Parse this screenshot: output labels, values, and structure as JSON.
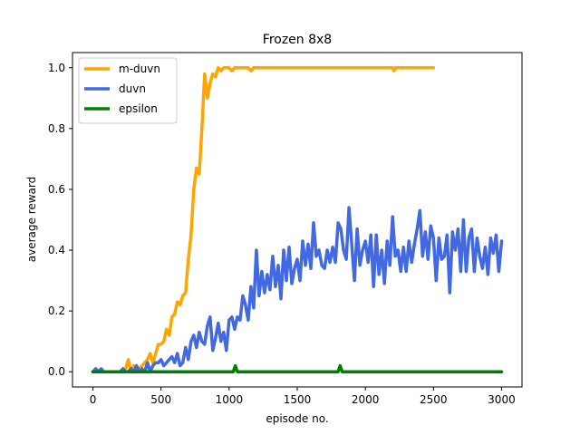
{
  "chart_data": {
    "type": "line",
    "title": "Frozen 8x8",
    "xlabel": "episode no.",
    "ylabel": "average reward",
    "xlim": [
      -150,
      3150
    ],
    "ylim": [
      -0.05,
      1.05
    ],
    "xticks": [
      0,
      500,
      1000,
      1500,
      2000,
      2500,
      3000
    ],
    "yticks": [
      0.0,
      0.2,
      0.4,
      0.6,
      0.8,
      1.0
    ],
    "xtick_labels": [
      "0",
      "500",
      "1000",
      "1500",
      "2000",
      "2500",
      "3000"
    ],
    "ytick_labels": [
      "0.0",
      "0.2",
      "0.4",
      "0.6",
      "0.8",
      "1.0"
    ],
    "grid": false,
    "legend_position": "top-left",
    "series": [
      {
        "name": "m-duvn",
        "color": "#ffa500",
        "x": [
          0,
          20,
          40,
          60,
          80,
          100,
          120,
          140,
          160,
          180,
          200,
          220,
          240,
          260,
          280,
          300,
          320,
          340,
          360,
          380,
          400,
          420,
          440,
          460,
          480,
          500,
          520,
          540,
          560,
          580,
          600,
          620,
          640,
          660,
          680,
          700,
          720,
          740,
          760,
          780,
          800,
          820,
          840,
          860,
          880,
          900,
          920,
          940,
          960,
          980,
          1000,
          1020,
          1040,
          1060,
          1080,
          1100,
          1120,
          1140,
          1160,
          1180,
          1200,
          1250,
          1300,
          1350,
          1400,
          1500,
          1600,
          1700,
          1800,
          1900,
          2000,
          2100,
          2200,
          2210,
          2220,
          2300,
          2400,
          2450,
          2500
        ],
        "y": [
          0,
          0,
          0,
          0,
          0,
          0,
          0,
          0,
          0,
          0,
          0,
          0,
          0.01,
          0.04,
          0,
          0.02,
          0,
          0.01,
          0.02,
          0.03,
          0.04,
          0.06,
          0.03,
          0.06,
          0.09,
          0.09,
          0.1,
          0.14,
          0.12,
          0.18,
          0.19,
          0.23,
          0.22,
          0.25,
          0.26,
          0.37,
          0.45,
          0.6,
          0.67,
          0.65,
          0.8,
          0.98,
          0.9,
          0.95,
          0.98,
          0.97,
          1.0,
          0.99,
          1.0,
          1.0,
          1.0,
          0.99,
          1.0,
          1.0,
          1.0,
          1.0,
          1.0,
          1.0,
          0.99,
          1.0,
          1.0,
          1.0,
          1.0,
          1.0,
          1.0,
          1.0,
          1.0,
          1.0,
          1.0,
          1.0,
          1.0,
          1.0,
          1.0,
          0.99,
          1.0,
          1.0,
          1.0,
          1.0,
          1.0
        ]
      },
      {
        "name": "duvn",
        "color": "#4169e1",
        "x": [
          0,
          20,
          40,
          60,
          80,
          100,
          120,
          140,
          160,
          180,
          200,
          220,
          240,
          260,
          280,
          300,
          320,
          340,
          360,
          380,
          400,
          420,
          440,
          460,
          480,
          500,
          520,
          540,
          560,
          580,
          600,
          620,
          640,
          660,
          680,
          700,
          720,
          740,
          760,
          780,
          800,
          820,
          840,
          860,
          880,
          900,
          920,
          940,
          960,
          980,
          1000,
          1020,
          1040,
          1060,
          1080,
          1100,
          1120,
          1140,
          1160,
          1180,
          1200,
          1220,
          1240,
          1260,
          1280,
          1300,
          1320,
          1340,
          1360,
          1380,
          1400,
          1420,
          1440,
          1460,
          1480,
          1500,
          1520,
          1540,
          1560,
          1580,
          1600,
          1620,
          1640,
          1660,
          1680,
          1700,
          1720,
          1740,
          1760,
          1780,
          1800,
          1820,
          1840,
          1860,
          1880,
          1900,
          1920,
          1940,
          1960,
          1980,
          2000,
          2020,
          2040,
          2060,
          2080,
          2100,
          2120,
          2140,
          2160,
          2180,
          2200,
          2220,
          2240,
          2260,
          2280,
          2300,
          2320,
          2340,
          2360,
          2380,
          2400,
          2420,
          2440,
          2460,
          2480,
          2500,
          2520,
          2540,
          2560,
          2580,
          2600,
          2620,
          2640,
          2660,
          2680,
          2700,
          2720,
          2740,
          2760,
          2780,
          2800,
          2820,
          2840,
          2860,
          2880,
          2900,
          2920,
          2940,
          2960,
          2980,
          3000
        ],
        "y": [
          0,
          0.01,
          0,
          0.01,
          0,
          0,
          0,
          0,
          0,
          0,
          0,
          0.01,
          0,
          0,
          0.01,
          0,
          0.02,
          0,
          0.01,
          0,
          0.03,
          0,
          0.02,
          0.03,
          0.03,
          0.04,
          0.02,
          0.03,
          0.04,
          0.05,
          0.03,
          0.06,
          0.02,
          0.03,
          0.08,
          0.04,
          0.1,
          0.12,
          0.08,
          0.13,
          0.1,
          0.09,
          0.15,
          0.18,
          0.07,
          0.11,
          0.16,
          0.1,
          0.13,
          0.07,
          0.17,
          0.18,
          0.14,
          0.18,
          0.17,
          0.25,
          0.22,
          0.17,
          0.28,
          0.21,
          0.4,
          0.25,
          0.33,
          0.26,
          0.32,
          0.27,
          0.38,
          0.28,
          0.35,
          0.24,
          0.4,
          0.3,
          0.41,
          0.29,
          0.34,
          0.37,
          0.3,
          0.43,
          0.35,
          0.42,
          0.34,
          0.49,
          0.38,
          0.4,
          0.35,
          0.34,
          0.4,
          0.36,
          0.41,
          0.36,
          0.49,
          0.47,
          0.4,
          0.37,
          0.54,
          0.42,
          0.3,
          0.47,
          0.35,
          0.4,
          0.43,
          0.36,
          0.45,
          0.28,
          0.45,
          0.32,
          0.4,
          0.29,
          0.43,
          0.35,
          0.51,
          0.38,
          0.4,
          0.33,
          0.41,
          0.33,
          0.43,
          0.36,
          0.42,
          0.47,
          0.53,
          0.38,
          0.46,
          0.37,
          0.48,
          0.44,
          0.3,
          0.44,
          0.37,
          0.38,
          0.45,
          0.26,
          0.46,
          0.4,
          0.47,
          0.33,
          0.5,
          0.33,
          0.44,
          0.47,
          0.33,
          0.44,
          0.38,
          0.34,
          0.41,
          0.32,
          0.44,
          0.39,
          0.45,
          0.33,
          0.43
        ]
      },
      {
        "name": "epsilon",
        "color": "#008000",
        "x": [
          0,
          1030,
          1045,
          1060,
          1080,
          1800,
          1815,
          1830,
          1850,
          3000
        ],
        "y": [
          0,
          0,
          0.02,
          0,
          0,
          0,
          0.02,
          0,
          0,
          0
        ]
      }
    ]
  }
}
